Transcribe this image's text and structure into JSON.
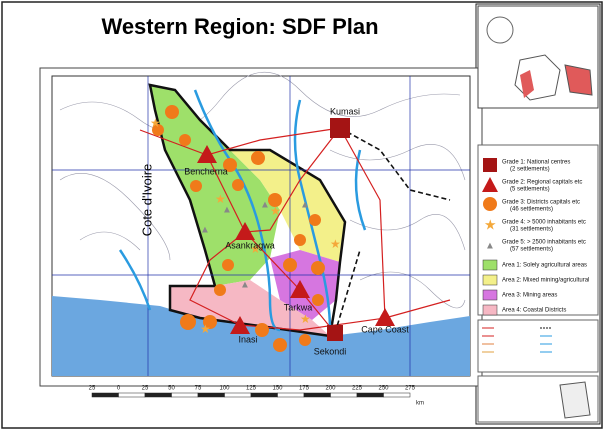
{
  "title": "Western Region: SDF Plan",
  "country_label": "Cote d'Ivoire",
  "places": [
    "Kumasi",
    "Bencherna",
    "Asankragwa",
    "Tarkwa",
    "Inasi",
    "Sekondi",
    "Cape Coast"
  ],
  "legend": [
    {
      "label": "Grade 1: National centres",
      "note": "(2 settlements)"
    },
    {
      "label": "Grade 2: Regional capitals etc",
      "note": "(5 settlements)"
    },
    {
      "label": "Grade 3: Districts capitals etc",
      "note": "(46 settlements)"
    },
    {
      "label": "Grade 4: > 5000 inhabitants etc",
      "note": "(31 settlements)"
    },
    {
      "label": "Grade 5: > 2500 inhabitants etc",
      "note": "(57 settlements)"
    }
  ],
  "areas": [
    "Area 1: Solely agricultural areas",
    "Area 2: Mixed mining/agricultural",
    "Area 3: Mining areas",
    "Area 4: Coastal Districts"
  ],
  "scale": {
    "ticks": [
      "25",
      "0",
      "25",
      "50",
      "75",
      "100",
      "125",
      "150",
      "175",
      "200",
      "225",
      "250",
      "275"
    ],
    "unit": "km"
  }
}
